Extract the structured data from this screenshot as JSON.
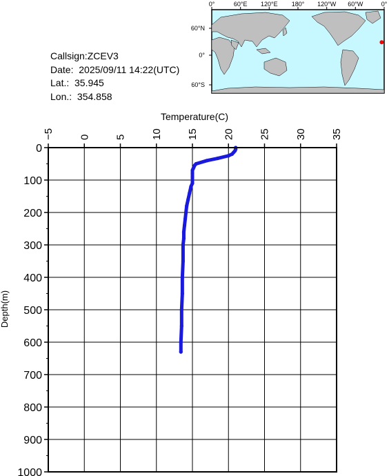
{
  "info": {
    "callsign": "Callsign:ZCEV3",
    "date": "Date:  2025/09/11 14:22(UTC)",
    "lat": "Lat.:  35.945",
    "lon": "Lon.:  354.858"
  },
  "map": {
    "lon_labels": [
      "0°",
      "60°E",
      "120°E",
      "180°",
      "120°W",
      "60°W",
      "0°"
    ],
    "lat_labels": [
      "60°N",
      "0°",
      "60°S"
    ],
    "ocean_color": "#c8f8ff",
    "land_color": "#bfbfbf",
    "marker_color": "#ff0000",
    "marker": {
      "lon": 354.858,
      "lat": 35.945
    }
  },
  "chart_data": {
    "type": "line",
    "xlabel": "Temperature(C)",
    "ylabel": "Depth(m)",
    "xlim": [
      -5,
      35
    ],
    "ylim": [
      0,
      1000
    ],
    "y_inverted": true,
    "x_ticks": [
      "-5",
      "0",
      "5",
      "10",
      "15",
      "20",
      "25",
      "30",
      "35"
    ],
    "y_ticks": [
      "0",
      "100",
      "200",
      "300",
      "400",
      "500",
      "600",
      "700",
      "800",
      "900",
      "1000"
    ],
    "grid": true,
    "series": [
      {
        "color": "#1a1adc",
        "points": [
          [
            21.0,
            0
          ],
          [
            21.0,
            5
          ],
          [
            20.9,
            10
          ],
          [
            20.7,
            15
          ],
          [
            20.5,
            20
          ],
          [
            20.0,
            25
          ],
          [
            18.5,
            33
          ],
          [
            17.0,
            40
          ],
          [
            15.5,
            50
          ],
          [
            15.3,
            55
          ],
          [
            15.2,
            60
          ],
          [
            15.1,
            65
          ],
          [
            15.0,
            70
          ],
          [
            15.0,
            80
          ],
          [
            15.0,
            90
          ],
          [
            15.0,
            100
          ],
          [
            15.0,
            110
          ],
          [
            14.8,
            120
          ],
          [
            14.6,
            140
          ],
          [
            14.4,
            160
          ],
          [
            14.2,
            180
          ],
          [
            14.1,
            200
          ],
          [
            14.0,
            220
          ],
          [
            13.9,
            240
          ],
          [
            13.8,
            260
          ],
          [
            13.8,
            280
          ],
          [
            13.7,
            300
          ],
          [
            13.7,
            350
          ],
          [
            13.6,
            400
          ],
          [
            13.6,
            450
          ],
          [
            13.5,
            500
          ],
          [
            13.5,
            550
          ],
          [
            13.4,
            600
          ],
          [
            13.4,
            630
          ]
        ]
      }
    ]
  }
}
